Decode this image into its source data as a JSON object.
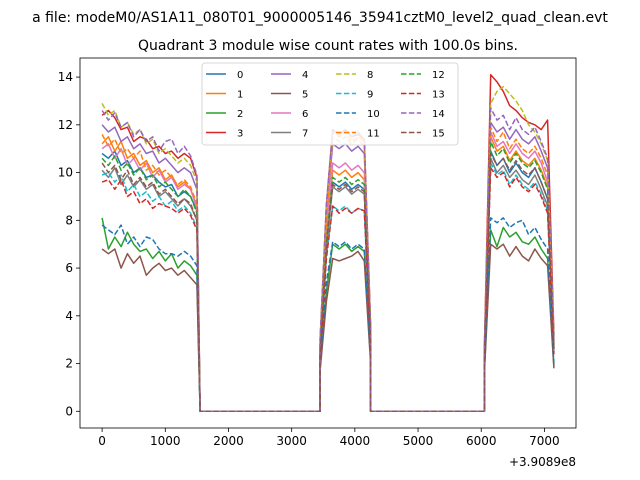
{
  "figure": {
    "suptitle": "a file: modeM0/AS1A11_080T01_9000005146_35941cztM0_level2_quad_clean.evt"
  },
  "chart_data": {
    "type": "line",
    "title": "Quadrant 3 module wise count rates with 100.0s bins.",
    "xlabel": "",
    "ylabel": "",
    "x_offset_label": "+3.9089e8",
    "xlim": [
      -350,
      7500
    ],
    "ylim": [
      -0.7,
      14.8
    ],
    "xticks": [
      0,
      1000,
      2000,
      3000,
      4000,
      5000,
      6000,
      7000
    ],
    "yticks": [
      0,
      2,
      4,
      6,
      8,
      10,
      12,
      14
    ],
    "grid": false,
    "legend": {
      "placement": "upper-center",
      "ncol": 4
    },
    "segments": [
      {
        "start": 0,
        "step": 100,
        "count": 16
      },
      {
        "start": 3450,
        "step": 100,
        "count": 9
      },
      {
        "start": 6050,
        "step": 100,
        "count": 12
      }
    ],
    "gaps": [
      {
        "start": 1550,
        "end": 3450,
        "value": 0
      },
      {
        "start": 4250,
        "end": 6050,
        "value": 0
      }
    ],
    "series": [
      {
        "name": "0",
        "color": "#1f77b4",
        "dash": "solid",
        "segments": [
          [
            10.8,
            10.6,
            10.9,
            10.3,
            10.5,
            10.0,
            10.2,
            9.8,
            9.9,
            9.6,
            9.4,
            9.5,
            9.0,
            9.2,
            9.0,
            8.4
          ],
          [
            2.4,
            7.0,
            9.6,
            9.4,
            9.6,
            9.3,
            9.5,
            9.3,
            3.0
          ],
          [
            2.2,
            10.9,
            10.3,
            10.6,
            10.0,
            10.4,
            10.0,
            9.8,
            10.2,
            9.6,
            8.9,
            2.6
          ]
        ]
      },
      {
        "name": "1",
        "color": "#ff7f0e",
        "dash": "solid",
        "segments": [
          [
            11.2,
            11.5,
            10.9,
            11.3,
            10.6,
            10.8,
            10.3,
            10.5,
            10.0,
            10.2,
            9.7,
            9.9,
            9.4,
            9.6,
            9.3,
            8.6
          ],
          [
            2.5,
            7.4,
            10.1,
            9.9,
            10.1,
            9.8,
            10.0,
            9.7,
            3.1
          ],
          [
            2.3,
            11.5,
            10.9,
            11.1,
            10.5,
            10.9,
            10.5,
            10.3,
            10.6,
            10.1,
            9.4,
            2.7
          ]
        ]
      },
      {
        "name": "2",
        "color": "#2ca02c",
        "dash": "solid",
        "segments": [
          [
            8.1,
            6.8,
            7.3,
            6.9,
            7.5,
            7.0,
            6.7,
            6.8,
            6.4,
            6.7,
            6.3,
            6.6,
            6.0,
            6.3,
            6.1,
            5.7
          ],
          [
            1.9,
            5.0,
            7.0,
            6.8,
            7.0,
            6.7,
            6.9,
            6.7,
            2.2
          ],
          [
            1.7,
            7.6,
            6.9,
            7.7,
            7.3,
            7.5,
            7.1,
            7.0,
            7.3,
            6.8,
            6.4,
            1.9
          ]
        ]
      },
      {
        "name": "3",
        "color": "#d62728",
        "dash": "solid",
        "segments": [
          [
            12.4,
            12.6,
            12.3,
            11.8,
            11.9,
            11.3,
            11.5,
            11.4,
            11.0,
            11.1,
            10.8,
            10.9,
            10.6,
            10.8,
            10.6,
            9.8
          ],
          [
            3.0,
            8.6,
            11.8,
            11.6,
            11.8,
            11.5,
            11.6,
            11.4,
            3.6
          ],
          [
            2.7,
            14.1,
            13.8,
            13.4,
            12.8,
            12.6,
            12.3,
            12.1,
            12.0,
            11.8,
            12.2,
            3.2
          ]
        ]
      },
      {
        "name": "4",
        "color": "#9467bd",
        "dash": "solid",
        "segments": [
          [
            12.0,
            11.7,
            11.9,
            11.3,
            11.5,
            11.0,
            11.2,
            10.8,
            10.9,
            10.4,
            10.6,
            10.3,
            10.0,
            10.2,
            10.0,
            9.3
          ],
          [
            2.8,
            8.2,
            11.2,
            11.0,
            11.2,
            10.9,
            11.1,
            10.8,
            3.4
          ],
          [
            2.5,
            12.1,
            11.7,
            11.9,
            11.4,
            11.8,
            11.4,
            11.2,
            11.5,
            10.9,
            10.2,
            3.0
          ]
        ]
      },
      {
        "name": "5",
        "color": "#8c564b",
        "dash": "solid",
        "segments": [
          [
            6.8,
            6.6,
            6.8,
            6.0,
            6.6,
            6.2,
            6.5,
            5.7,
            6.0,
            6.2,
            5.9,
            6.0,
            5.7,
            5.9,
            5.6,
            5.3
          ],
          [
            1.7,
            4.6,
            6.4,
            6.3,
            6.4,
            6.5,
            6.7,
            6.3,
            2.0
          ],
          [
            1.6,
            7.0,
            6.8,
            7.0,
            6.5,
            6.9,
            6.5,
            6.3,
            6.8,
            6.4,
            6.1,
            1.8
          ]
        ]
      },
      {
        "name": "6",
        "color": "#e377c2",
        "dash": "solid",
        "segments": [
          [
            11.0,
            11.2,
            10.6,
            11.0,
            10.3,
            10.6,
            10.1,
            10.4,
            9.8,
            10.1,
            9.6,
            9.8,
            9.3,
            9.5,
            9.3,
            8.5
          ],
          [
            2.6,
            7.6,
            10.4,
            10.2,
            10.4,
            10.1,
            10.3,
            10.0,
            3.2
          ],
          [
            2.3,
            11.7,
            11.1,
            11.3,
            10.8,
            11.2,
            10.8,
            10.6,
            10.9,
            10.4,
            9.6,
            2.8
          ]
        ]
      },
      {
        "name": "7",
        "color": "#7f7f7f",
        "dash": "solid",
        "segments": [
          [
            10.1,
            9.8,
            10.2,
            9.5,
            9.9,
            9.4,
            9.7,
            9.3,
            9.5,
            9.0,
            9.2,
            8.9,
            8.6,
            8.9,
            8.6,
            8.0
          ],
          [
            2.3,
            6.9,
            9.4,
            9.2,
            9.4,
            9.1,
            9.3,
            9.1,
            2.9
          ],
          [
            2.1,
            10.6,
            10.0,
            10.3,
            9.8,
            10.1,
            9.7,
            9.5,
            9.9,
            9.3,
            8.6,
            2.5
          ]
        ]
      },
      {
        "name": "8",
        "color": "#bcbd22",
        "dash": "dashed",
        "segments": [
          [
            12.9,
            12.4,
            12.6,
            11.9,
            12.1,
            11.6,
            11.8,
            11.2,
            11.4,
            10.8,
            11.0,
            10.7,
            10.4,
            10.6,
            10.3,
            9.6
          ],
          [
            2.9,
            8.4,
            11.5,
            11.3,
            11.5,
            11.2,
            11.4,
            11.1,
            3.5
          ],
          [
            2.6,
            12.9,
            13.4,
            13.6,
            13.3,
            13.0,
            12.6,
            12.0,
            11.7,
            11.2,
            10.5,
            3.1
          ]
        ]
      },
      {
        "name": "9",
        "color": "#17becf",
        "dash": "dashed",
        "segments": [
          [
            9.9,
            10.0,
            9.6,
            9.9,
            9.2,
            9.5,
            9.0,
            9.2,
            8.8,
            9.0,
            8.6,
            8.8,
            8.4,
            8.6,
            8.3,
            7.7
          ],
          [
            2.1,
            6.5,
            8.6,
            8.4,
            8.6,
            8.3,
            8.5,
            8.4,
            2.7
          ],
          [
            2.0,
            10.4,
            9.9,
            10.1,
            9.5,
            9.9,
            9.5,
            9.3,
            9.6,
            9.1,
            8.4,
            2.4
          ]
        ]
      },
      {
        "name": "10",
        "color": "#1f77b4",
        "dash": "dashed",
        "segments": [
          [
            7.8,
            7.6,
            7.4,
            7.8,
            7.0,
            7.3,
            6.9,
            7.3,
            7.2,
            6.8,
            6.6,
            6.6,
            6.5,
            6.7,
            6.5,
            6.1
          ],
          [
            2.0,
            5.4,
            7.1,
            6.9,
            7.1,
            6.8,
            7.0,
            6.8,
            2.3
          ],
          [
            1.8,
            8.1,
            7.9,
            8.1,
            7.7,
            7.9,
            8.0,
            7.4,
            7.7,
            7.2,
            6.8,
            2.0
          ]
        ]
      },
      {
        "name": "11",
        "color": "#ff7f0e",
        "dash": "dashed",
        "segments": [
          [
            11.6,
            11.1,
            11.4,
            10.8,
            11.0,
            10.6,
            10.9,
            10.1,
            10.3,
            9.9,
            10.1,
            9.8,
            9.5,
            9.7,
            9.4,
            8.7
          ],
          [
            2.7,
            7.9,
            11.7,
            11.5,
            11.7,
            11.3,
            11.5,
            11.3,
            3.3
          ],
          [
            2.4,
            11.9,
            11.3,
            11.7,
            11.0,
            11.4,
            11.0,
            10.8,
            11.1,
            10.6,
            9.9,
            2.9
          ]
        ]
      },
      {
        "name": "12",
        "color": "#2ca02c",
        "dash": "dashed",
        "segments": [
          [
            10.6,
            10.3,
            10.7,
            10.1,
            10.4,
            9.9,
            10.2,
            9.7,
            9.9,
            9.4,
            9.6,
            9.3,
            9.0,
            9.3,
            9.0,
            8.3
          ],
          [
            2.4,
            7.1,
            9.8,
            9.6,
            9.8,
            9.5,
            9.7,
            9.5,
            3.0
          ],
          [
            2.2,
            11.3,
            10.7,
            11.0,
            10.4,
            10.8,
            10.4,
            10.2,
            10.5,
            10.0,
            9.3,
            2.7
          ]
        ]
      },
      {
        "name": "13",
        "color": "#d62728",
        "dash": "dashed",
        "segments": [
          [
            9.6,
            9.7,
            9.3,
            9.7,
            9.0,
            9.2,
            8.7,
            8.9,
            8.5,
            8.7,
            8.6,
            8.5,
            8.3,
            8.5,
            8.2,
            7.6
          ],
          [
            2.2,
            6.4,
            8.6,
            8.3,
            8.5,
            8.3,
            8.5,
            8.4,
            2.7
          ],
          [
            2.0,
            10.2,
            9.8,
            10.0,
            9.4,
            9.8,
            9.4,
            9.2,
            9.5,
            9.0,
            8.3,
            2.4
          ]
        ]
      },
      {
        "name": "14",
        "color": "#9467bd",
        "dash": "dashed",
        "segments": [
          [
            12.6,
            12.2,
            12.5,
            11.9,
            12.1,
            11.5,
            11.8,
            11.3,
            11.5,
            10.9,
            11.3,
            11.4,
            10.8,
            11.1,
            10.7,
            9.9
          ],
          [
            3.0,
            8.7,
            11.8,
            11.6,
            11.8,
            11.5,
            11.7,
            11.4,
            3.6
          ],
          [
            2.6,
            12.7,
            12.2,
            12.4,
            11.8,
            12.3,
            11.8,
            11.6,
            11.9,
            11.3,
            10.6,
            3.1
          ]
        ]
      },
      {
        "name": "15",
        "color": "#8c564b",
        "dash": "dashed",
        "segments": [
          [
            10.4,
            10.0,
            10.3,
            9.7,
            10.1,
            9.5,
            9.8,
            9.4,
            9.6,
            9.1,
            9.3,
            9.0,
            8.7,
            8.9,
            8.7,
            8.0
          ],
          [
            2.3,
            6.9,
            9.5,
            9.3,
            9.5,
            9.2,
            9.4,
            9.2,
            2.9
          ],
          [
            2.1,
            10.8,
            10.3,
            10.6,
            10.1,
            10.5,
            10.1,
            9.9,
            10.2,
            9.6,
            8.9,
            2.6
          ]
        ]
      }
    ]
  }
}
